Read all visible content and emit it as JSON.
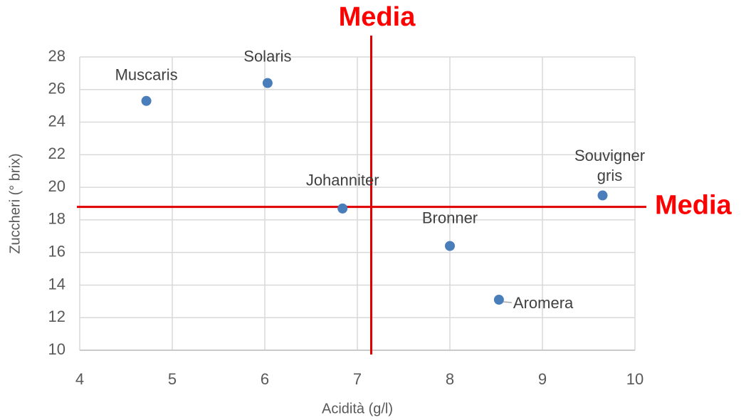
{
  "chart_data": {
    "type": "scatter",
    "x_label": "Acidità (g/l)",
    "y_label": "Zuccheri (° brix)",
    "series": [
      {
        "color": "#4a7ebb",
        "labels": [
          "Muscaris",
          "Solaris",
          "Johanniter",
          "Bronner",
          "Aromera",
          "Souvigner gris"
        ],
        "x": [
          4.72,
          6.03,
          6.84,
          8.0,
          8.53,
          9.65
        ],
        "values": [
          25.3,
          26.4,
          18.7,
          16.4,
          13.1,
          19.5
        ]
      }
    ],
    "xlim": [
      4,
      10
    ],
    "xticks": [
      4,
      5,
      6,
      7,
      8,
      9,
      10
    ],
    "ylim": [
      10,
      28
    ],
    "yticks": [
      10,
      12,
      14,
      16,
      18,
      20,
      22,
      24,
      26,
      28
    ],
    "grid": true,
    "annotations": [
      {
        "text": "Media",
        "x": 7.15,
        "color": "#e00000"
      },
      {
        "text": "Media",
        "y": 18.8,
        "color": "#e00000"
      }
    ]
  }
}
